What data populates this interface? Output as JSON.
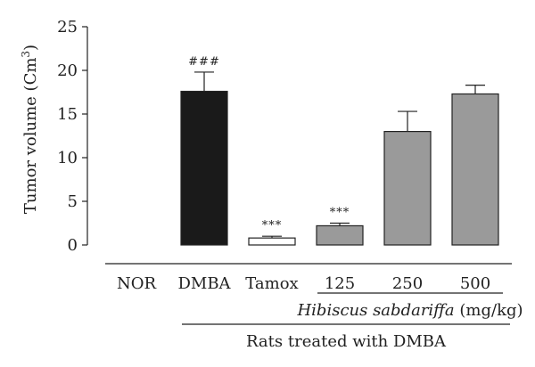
{
  "chart_data": {
    "type": "bar",
    "ylabel": "Tumor volume (Cm",
    "ylabel_sup": "3",
    "ylabel_close": ")",
    "ylim": [
      0,
      25
    ],
    "yticks": [
      "0",
      "5",
      "10",
      "15",
      "20",
      "25"
    ],
    "categories": [
      "NOR",
      "DMBA",
      "Tamox",
      "125",
      "250",
      "500"
    ],
    "values": [
      0,
      17.6,
      0.8,
      2.2,
      13.0,
      17.3
    ],
    "errors": [
      0,
      2.2,
      0.2,
      0.3,
      2.3,
      1.0
    ],
    "colors": [
      "#ffffff",
      "#1a1a1a",
      "#ffffff",
      "#9a9a9a",
      "#9a9a9a",
      "#9a9a9a"
    ],
    "annotations": [
      "",
      "###",
      "***",
      "***",
      "",
      ""
    ],
    "group_label_italic": "Hibiscus sabdariffa",
    "group_label_unit": " (mg/kg)",
    "outer_label": "Rats treated with DMBA",
    "grid": false
  }
}
